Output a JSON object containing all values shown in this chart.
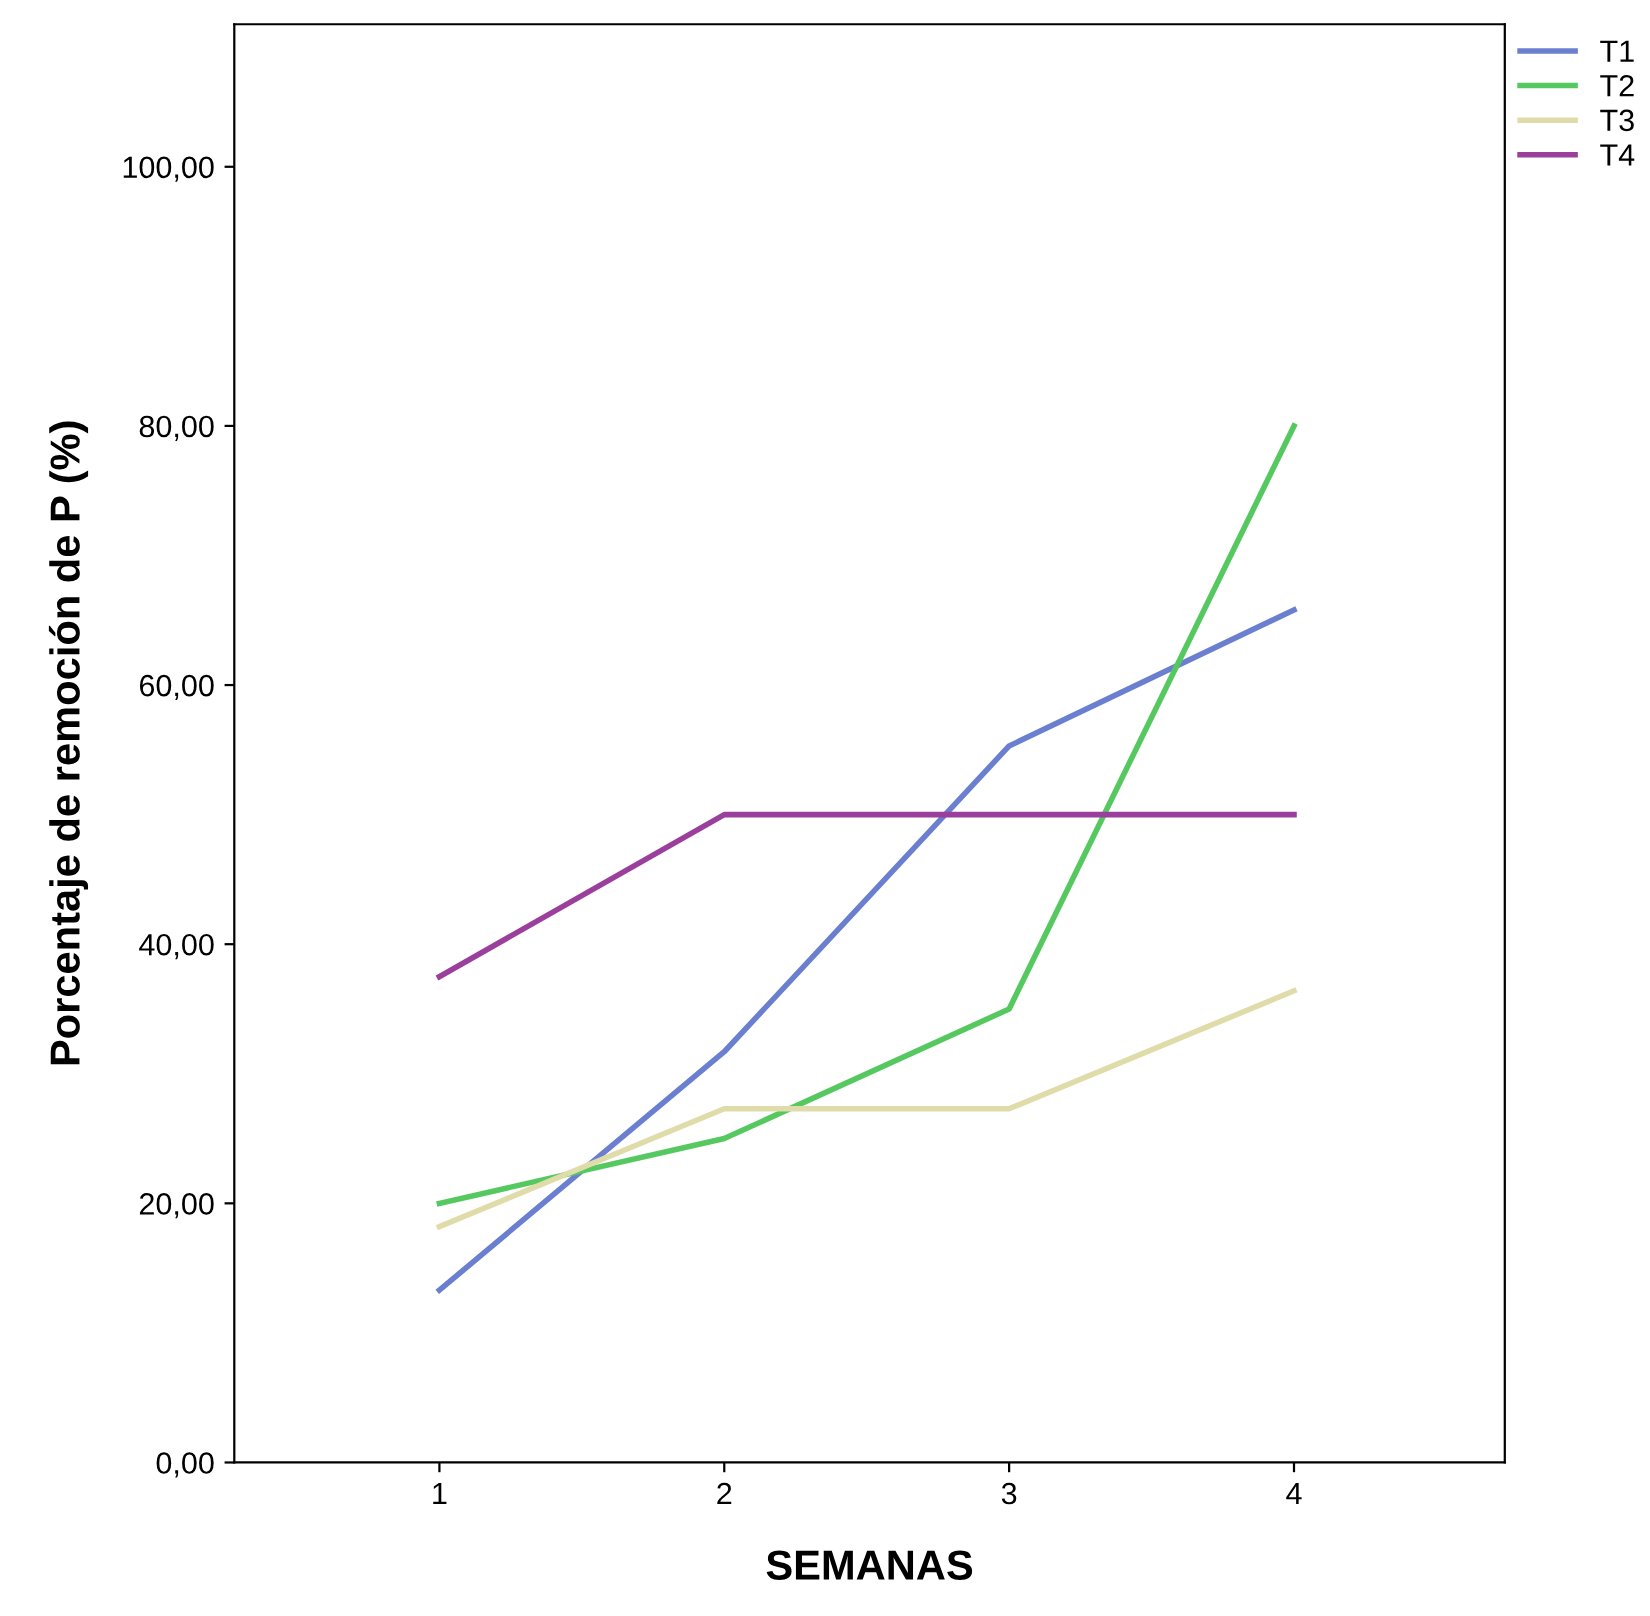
{
  "chart_data": {
    "type": "line",
    "xlabel": "SEMANAS",
    "ylabel": "Porcentaje de remoción de P (%)",
    "categories": [
      "1",
      "2",
      "3",
      "4"
    ],
    "series": [
      {
        "name": "T1",
        "color": "#6b7fd0",
        "values": [
          13.3,
          31.7,
          55.3,
          65.8
        ]
      },
      {
        "name": "T2",
        "color": "#55c95f",
        "values": [
          20.0,
          25.0,
          35.0,
          80.0
        ]
      },
      {
        "name": "T3",
        "color": "#e0dcaa",
        "values": [
          18.2,
          27.3,
          27.3,
          36.4
        ]
      },
      {
        "name": "T4",
        "color": "#9b3f9c",
        "values": [
          37.5,
          50.0,
          50.0,
          50.0
        ]
      }
    ],
    "ylim": [
      0,
      111
    ],
    "yticks": [
      {
        "value": 0,
        "label": "0,00"
      },
      {
        "value": 20,
        "label": "20,00"
      },
      {
        "value": 40,
        "label": "40,00"
      },
      {
        "value": 60,
        "label": "60,00"
      },
      {
        "value": 80,
        "label": "80,00"
      },
      {
        "value": 100,
        "label": "100,00"
      }
    ],
    "legend": "top right",
    "grid": false,
    "marker": "none",
    "line_style": "solid"
  }
}
